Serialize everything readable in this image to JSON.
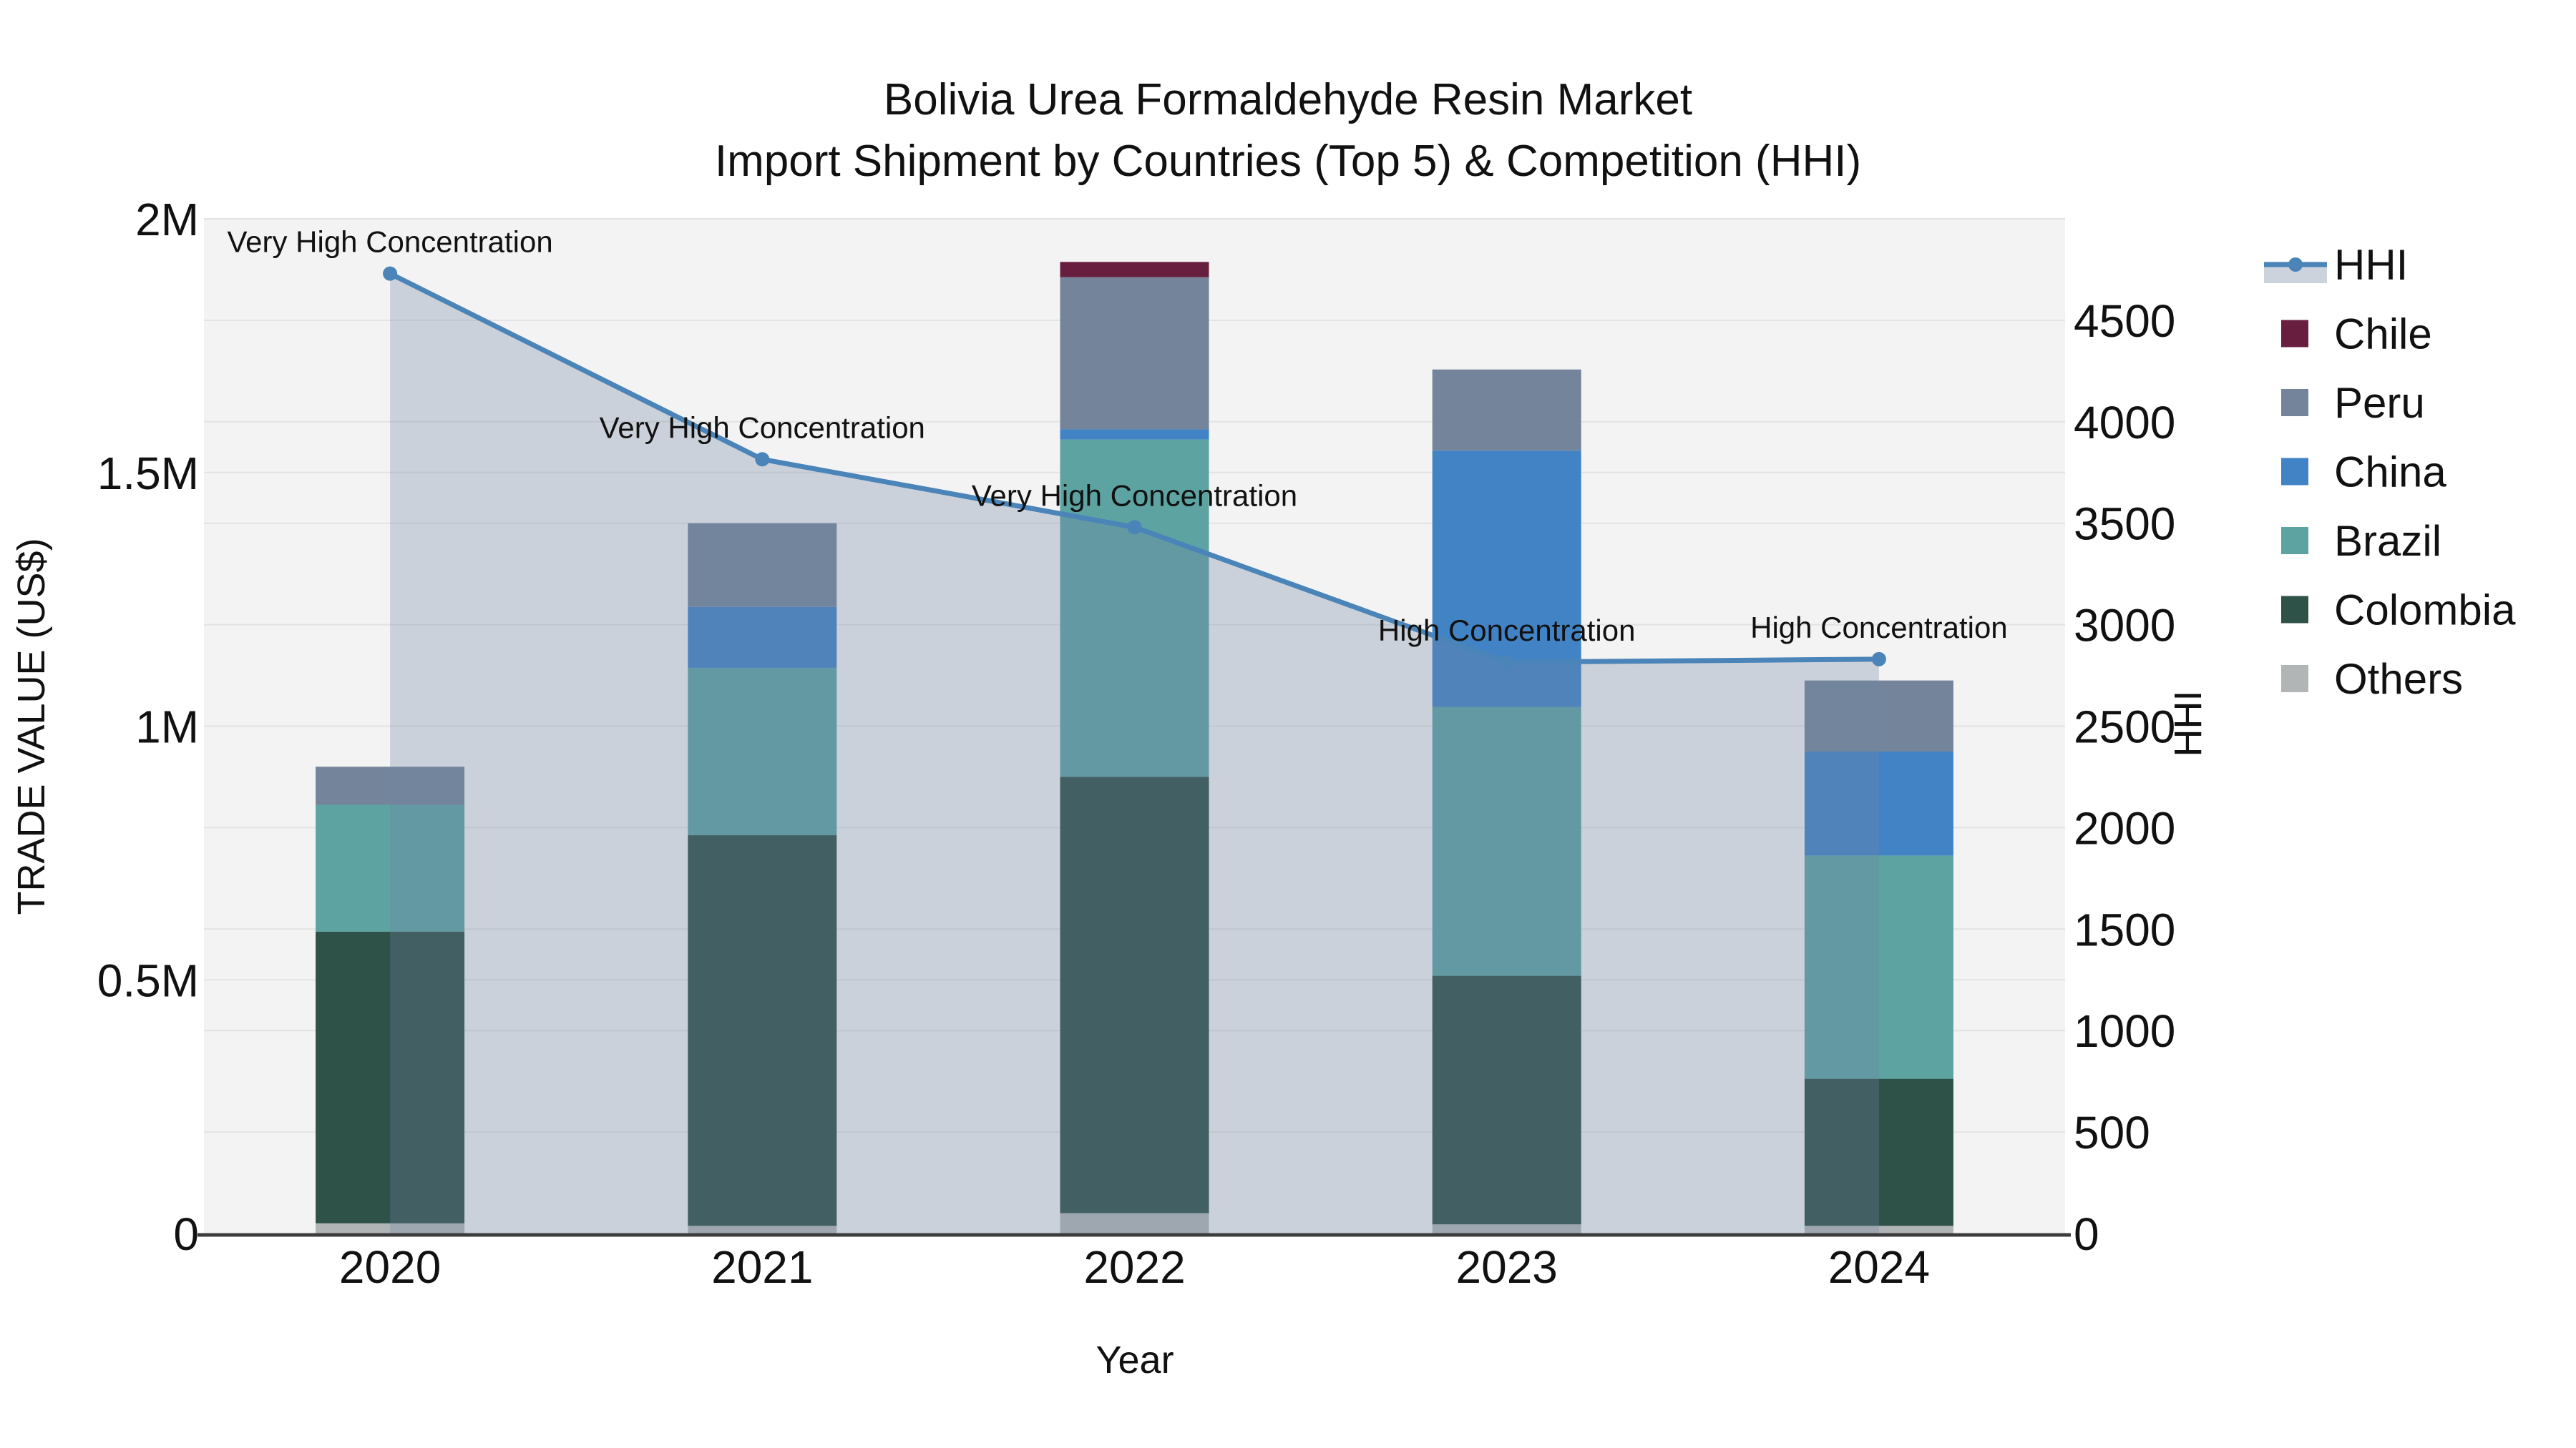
{
  "chart_data": {
    "type": "stacked_bar_line_dual_axis",
    "title_line1": "Bolivia Urea Formaldehyde Resin Market",
    "title_line2": "Import Shipment by Countries (Top 5) & Competition (HHI)",
    "xlabel": "Year",
    "ylabel_left": "TRADE VALUE (US$)",
    "ylabel_right": "HHI",
    "categories": [
      "2020",
      "2021",
      "2022",
      "2023",
      "2024"
    ],
    "bar_stack_order_bottom_to_top": [
      "Others",
      "Colombia",
      "Brazil",
      "China",
      "Peru",
      "Chile"
    ],
    "bar_series": [
      {
        "name": "Others",
        "color": "#b2b5b6",
        "values": [
          20000,
          15000,
          40000,
          18000,
          15000
        ]
      },
      {
        "name": "Colombia",
        "color": "#2e5148",
        "values": [
          575000,
          770000,
          860000,
          490000,
          290000
        ]
      },
      {
        "name": "Brazil",
        "color": "#5da3a2",
        "values": [
          250000,
          330000,
          665000,
          530000,
          440000
        ]
      },
      {
        "name": "China",
        "color": "#4183c4",
        "values": [
          0,
          120000,
          20000,
          505000,
          205000
        ]
      },
      {
        "name": "Peru",
        "color": "#74849b",
        "values": [
          75000,
          165000,
          300000,
          160000,
          140000
        ]
      },
      {
        "name": "Chile",
        "color": "#681f3f",
        "values": [
          0,
          0,
          30000,
          0,
          0
        ]
      }
    ],
    "line_series": {
      "name": "HHI",
      "color": "#4a84b8",
      "area_fill": "rgba(112,132,162,0.30)",
      "values": [
        4730,
        3815,
        3480,
        2815,
        2830
      ]
    },
    "annotations": [
      {
        "category": "2020",
        "text": "Very High Concentration"
      },
      {
        "category": "2021",
        "text": "Very High Concentration"
      },
      {
        "category": "2022",
        "text": "Very High Concentration"
      },
      {
        "category": "2023",
        "text": "High Concentration"
      },
      {
        "category": "2024",
        "text": "High Concentration"
      }
    ],
    "y_left": {
      "min": 0,
      "max": 2000000,
      "tick_labels": [
        "0",
        "0.5M",
        "1M",
        "1.5M",
        "2M"
      ],
      "tick_values": [
        0,
        500000,
        1000000,
        1500000,
        2000000
      ]
    },
    "y_right": {
      "min": 0,
      "max": 5000,
      "tick_labels": [
        "0",
        "500",
        "1000",
        "1500",
        "2000",
        "2500",
        "3000",
        "3500",
        "4000",
        "4500"
      ],
      "tick_values": [
        0,
        500,
        1000,
        1500,
        2000,
        2500,
        3000,
        3500,
        4000,
        4500
      ]
    },
    "legend": [
      "HHI",
      "Chile",
      "Peru",
      "China",
      "Brazil",
      "Colombia",
      "Others"
    ],
    "legend_position": "right",
    "grid": true
  },
  "colors": {
    "page_bg": "#ffffff",
    "plot_bg": "#f3f3f3",
    "gridline": "#e3e3e3",
    "axis_line": "#3c3c3c",
    "text": "#111111",
    "legend_hhi_band": "#cdd3dc"
  }
}
